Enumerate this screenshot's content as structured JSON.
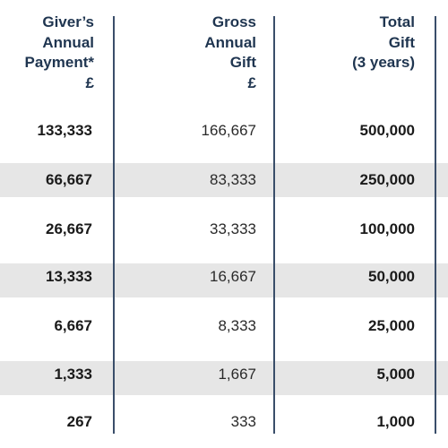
{
  "headers": {
    "col1": [
      "Giver’s",
      "Annual",
      "Payment*",
      "£"
    ],
    "col2": [
      "Gross",
      "Annual",
      "Gift",
      "£"
    ],
    "col3": [
      "Total",
      "Gift",
      "(3 years)"
    ]
  },
  "rows": [
    {
      "giver_payment": "133,333",
      "gross_gift": "166,667",
      "total_gift": "500,000",
      "shaded": false
    },
    {
      "giver_payment": "66,667",
      "gross_gift": "83,333",
      "total_gift": "250,000",
      "shaded": true
    },
    {
      "giver_payment": "26,667",
      "gross_gift": "33,333",
      "total_gift": "100,000",
      "shaded": false
    },
    {
      "giver_payment": "13,333",
      "gross_gift": "16,667",
      "total_gift": "50,000",
      "shaded": true
    },
    {
      "giver_payment": "6,667",
      "gross_gift": "8,333",
      "total_gift": "25,000",
      "shaded": false
    },
    {
      "giver_payment": "1,333",
      "gross_gift": "1,667",
      "total_gift": "5,000",
      "shaded": true
    },
    {
      "giver_payment": "267",
      "gross_gift": "333",
      "total_gift": "1,000",
      "shaded": false
    }
  ],
  "colors": {
    "header_text": "#1f3550",
    "row_shade": "#e6e6e6",
    "divider": "#3a4e6a"
  }
}
